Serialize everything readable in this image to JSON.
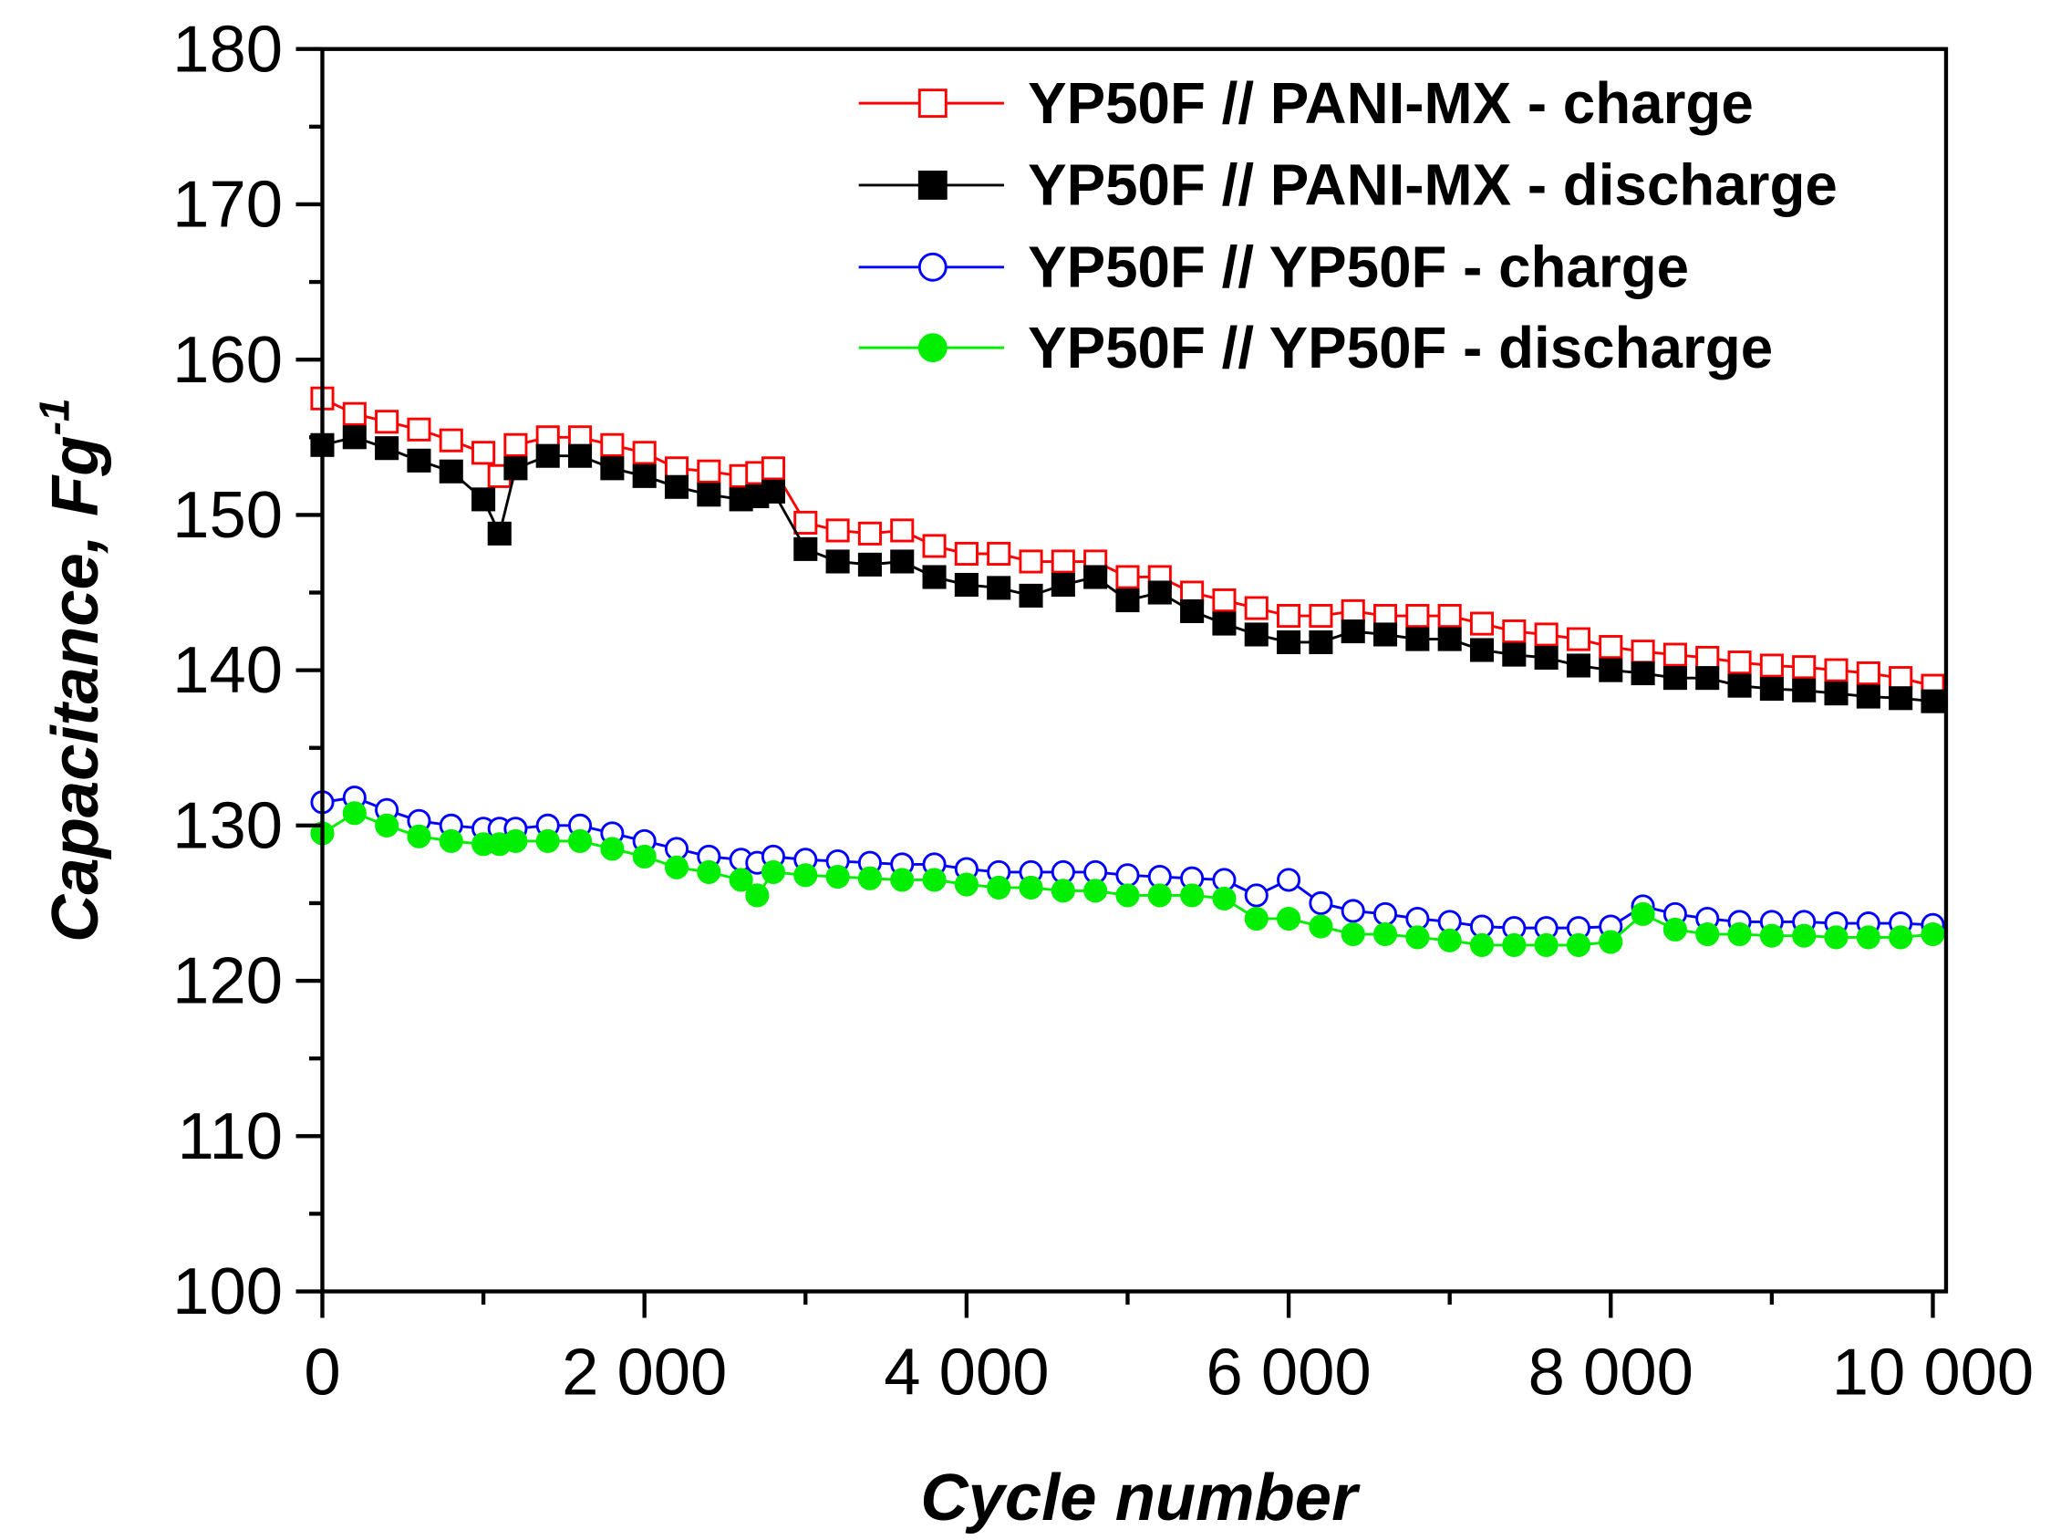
{
  "chart_data": {
    "type": "line",
    "title": "",
    "xlabel": "Cycle number",
    "ylabel": "Capacitance, Fg",
    "ylabel_superscript": "-1",
    "xlim": [
      0,
      10000
    ],
    "ylim": [
      100,
      180
    ],
    "xticks": [
      0,
      2000,
      4000,
      6000,
      8000,
      10000
    ],
    "xtick_labels": [
      "0",
      "2 000",
      "4 000",
      "6 000",
      "8 000",
      "10 000"
    ],
    "yticks": [
      100,
      110,
      120,
      130,
      140,
      150,
      160,
      170,
      180
    ],
    "ytick_labels": [
      "100",
      "110",
      "120",
      "130",
      "140",
      "150",
      "160",
      "170",
      "180"
    ],
    "grid": false,
    "legend_position": "top-right",
    "x": [
      0,
      200,
      400,
      600,
      800,
      1000,
      1100,
      1200,
      1400,
      1600,
      1800,
      2000,
      2200,
      2400,
      2600,
      2700,
      2800,
      3000,
      3200,
      3400,
      3600,
      3800,
      4000,
      4200,
      4400,
      4600,
      4800,
      5000,
      5200,
      5400,
      5600,
      5800,
      6000,
      6200,
      6400,
      6600,
      6800,
      7000,
      7200,
      7400,
      7600,
      7800,
      8000,
      8200,
      8400,
      8600,
      8800,
      9000,
      9200,
      9400,
      9600,
      9800,
      10000
    ],
    "series": [
      {
        "name": "YP50F // PANI-MX - charge",
        "color": "#ff0000",
        "marker": "open-square",
        "values": [
          157.5,
          156.5,
          156,
          155.5,
          154.8,
          154,
          152.5,
          154.5,
          155,
          155,
          154.5,
          154,
          153,
          152.8,
          152.5,
          152.7,
          153,
          149.5,
          149,
          148.8,
          149,
          148,
          147.5,
          147.5,
          147,
          147,
          147,
          146,
          146,
          145,
          144.5,
          144,
          143.5,
          143.5,
          143.8,
          143.5,
          143.5,
          143.5,
          143,
          142.5,
          142.3,
          142,
          141.5,
          141.2,
          141,
          140.8,
          140.5,
          140.3,
          140.2,
          140,
          139.8,
          139.5,
          139
        ]
      },
      {
        "name": "YP50F // PANI-MX - discharge",
        "color": "#000000",
        "marker": "filled-square",
        "values": [
          154.5,
          155,
          154.3,
          153.5,
          152.8,
          151,
          148.8,
          153,
          153.8,
          153.8,
          153,
          152.5,
          151.8,
          151.3,
          151,
          151.2,
          151.5,
          147.8,
          147,
          146.8,
          147,
          146,
          145.5,
          145.3,
          144.8,
          145.5,
          146,
          144.5,
          145,
          143.8,
          143,
          142.3,
          141.8,
          141.8,
          142.5,
          142.3,
          142,
          142,
          141.3,
          141,
          140.8,
          140.3,
          140,
          139.8,
          139.5,
          139.5,
          139,
          138.8,
          138.7,
          138.5,
          138.3,
          138.2,
          138
        ]
      },
      {
        "name": "YP50F // YP50F - charge",
        "color": "#0000ff",
        "marker": "open-circle",
        "values": [
          131.5,
          131.8,
          131,
          130.3,
          130,
          129.8,
          129.8,
          129.8,
          130,
          130,
          129.5,
          129,
          128.5,
          128,
          127.8,
          127.6,
          128,
          127.8,
          127.7,
          127.6,
          127.5,
          127.5,
          127.2,
          127,
          127,
          127,
          127,
          126.8,
          126.7,
          126.6,
          126.5,
          125.5,
          126.5,
          125,
          124.5,
          124.3,
          124,
          123.8,
          123.5,
          123.4,
          123.4,
          123.4,
          123.5,
          124.8,
          124.3,
          124,
          123.8,
          123.8,
          123.8,
          123.7,
          123.7,
          123.7,
          123.6
        ]
      },
      {
        "name": "YP50F // YP50F - discharge",
        "color": "#00ee00",
        "marker": "filled-circle",
        "values": [
          129.5,
          130.8,
          130,
          129.3,
          129,
          128.8,
          128.8,
          129,
          129,
          129,
          128.5,
          128,
          127.3,
          127,
          126.5,
          125.5,
          127,
          126.8,
          126.7,
          126.6,
          126.5,
          126.5,
          126.2,
          126,
          126,
          125.8,
          125.8,
          125.5,
          125.5,
          125.5,
          125.3,
          124,
          124,
          123.5,
          123,
          123,
          122.8,
          122.6,
          122.3,
          122.3,
          122.3,
          122.3,
          122.5,
          124.3,
          123.3,
          123,
          123,
          122.9,
          122.9,
          122.8,
          122.8,
          122.8,
          123
        ]
      }
    ]
  }
}
